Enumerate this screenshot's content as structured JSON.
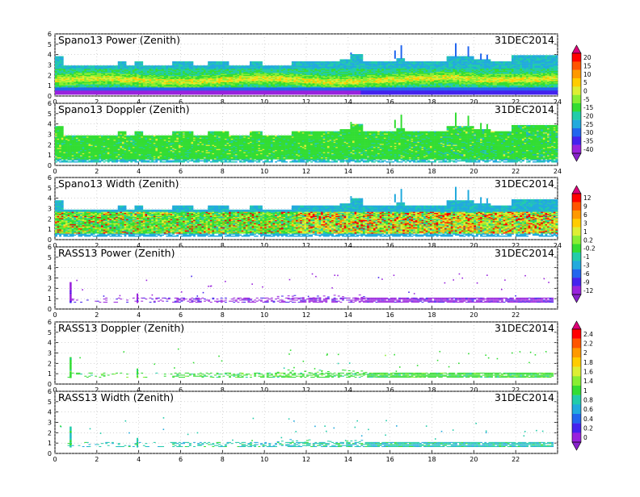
{
  "chart_data": {
    "type": "heatmap",
    "date": "31DEC2014",
    "xlim": [
      0,
      24
    ],
    "xticks": [
      0,
      2,
      4,
      6,
      8,
      10,
      12,
      14,
      16,
      18,
      20,
      22,
      24
    ],
    "ylim": [
      0,
      6
    ],
    "yticks": [
      0,
      1,
      2,
      3,
      4,
      5,
      6
    ],
    "grid": true,
    "panels": [
      {
        "title": "Spano13 Power (Zenith)",
        "product": "spano_power",
        "colorbar": 0
      },
      {
        "title": "Spano13 Doppler (Zenith)",
        "product": "spano_doppler",
        "colorbar": null
      },
      {
        "title": "Spano13 Width (Zenith)",
        "product": "spano_width",
        "colorbar": 1
      },
      {
        "title": "RASS13 Power (Zenith)",
        "product": "rass_power",
        "colorbar": null
      },
      {
        "title": "RASS13 Doppler (Zenith)",
        "product": "rass_doppler",
        "colorbar": 2
      },
      {
        "title": "RASS13 Width (Zenith)",
        "product": "rass_width",
        "colorbar": null
      }
    ],
    "colorbars": [
      {
        "labels": [
          "20",
          "15",
          "10",
          "5",
          "0",
          "-5",
          "-15",
          "-20",
          "-25",
          "-30",
          "-35",
          "-40"
        ]
      },
      {
        "labels": [
          "12",
          "9",
          "6",
          "3",
          "1",
          "0.2",
          "-0.2",
          "-1",
          "-3",
          "-6",
          "-9",
          "-12"
        ]
      },
      {
        "labels": [
          "2.4",
          "2.2",
          "2",
          "1.8",
          "1.6",
          "1.4",
          "1",
          "0.8",
          "0.6",
          "0.4",
          "0.2",
          "0"
        ]
      }
    ],
    "colors": {
      "palette": [
        "#ff0000",
        "#ff5500",
        "#ff9900",
        "#ffcc00",
        "#ddee33",
        "#88ee33",
        "#33dd33",
        "#22ccaa",
        "#22aadd",
        "#2266ee",
        "#4422ee",
        "#9922dd"
      ],
      "top_cap": "#dd0077",
      "bottom_cap": "#8822cc",
      "grid": "#bbbbbb",
      "frame": "#000000"
    },
    "spano_echo_top_km": [
      {
        "from": 0,
        "to": 0.4,
        "top": 3.8
      },
      {
        "from": 0.4,
        "to": 3.0,
        "top": 2.9
      },
      {
        "from": 3.0,
        "to": 3.4,
        "top": 3.3
      },
      {
        "from": 3.4,
        "to": 3.8,
        "top": 2.9
      },
      {
        "from": 3.8,
        "to": 4.2,
        "top": 3.3
      },
      {
        "from": 4.2,
        "to": 5.5,
        "top": 2.9
      },
      {
        "from": 5.5,
        "to": 6.5,
        "top": 3.3
      },
      {
        "from": 6.5,
        "to": 7.2,
        "top": 2.9
      },
      {
        "from": 7.2,
        "to": 8.2,
        "top": 3.3
      },
      {
        "from": 8.2,
        "to": 9.2,
        "top": 2.9
      },
      {
        "from": 9.2,
        "to": 9.8,
        "top": 3.3
      },
      {
        "from": 9.8,
        "to": 11.2,
        "top": 2.9
      },
      {
        "from": 11.2,
        "to": 13.5,
        "top": 3.3
      },
      {
        "from": 13.5,
        "to": 14.0,
        "top": 3.5
      },
      {
        "from": 14.0,
        "to": 14.6,
        "top": 4.0
      },
      {
        "from": 14.6,
        "to": 16.2,
        "top": 3.3
      },
      {
        "from": 16.2,
        "to": 16.6,
        "top": 3.6
      },
      {
        "from": 16.6,
        "to": 18.6,
        "top": 3.3
      },
      {
        "from": 18.6,
        "to": 20.0,
        "top": 3.8
      },
      {
        "from": 20.0,
        "to": 20.8,
        "top": 3.5
      },
      {
        "from": 20.8,
        "to": 21.8,
        "top": 3.3
      },
      {
        "from": 21.8,
        "to": 24.0,
        "top": 3.9
      }
    ],
    "spano_spikes": [
      {
        "x": 14.1,
        "top": 4.2
      },
      {
        "x": 16.2,
        "top": 4.4
      },
      {
        "x": 16.5,
        "top": 4.9
      },
      {
        "x": 19.1,
        "top": 5.1
      },
      {
        "x": 19.7,
        "top": 4.8
      },
      {
        "x": 20.3,
        "top": 4.1
      },
      {
        "x": 20.6,
        "top": 4.0
      }
    ],
    "rass_layer_km": [
      0.6,
      1.0
    ]
  }
}
